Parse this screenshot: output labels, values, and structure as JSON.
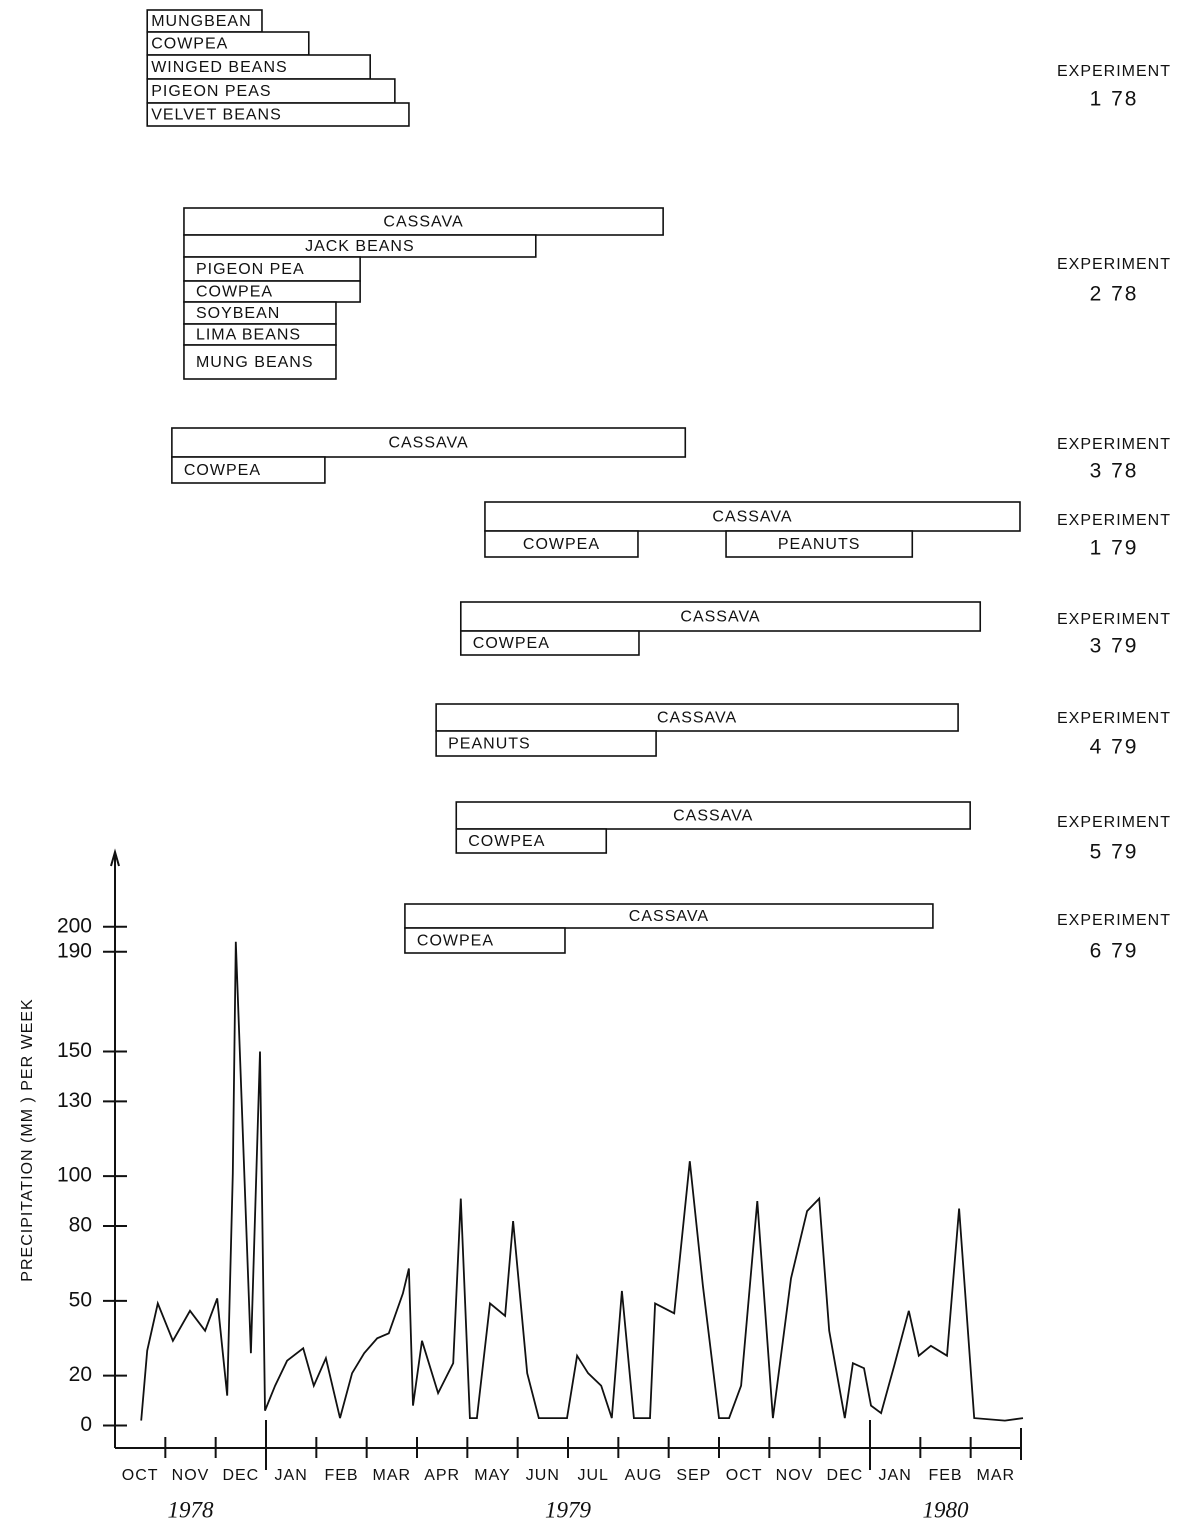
{
  "chart_data": [
    {
      "type": "gantt",
      "experiments": [
        {
          "label": "EXPERIMENT",
          "id": "1 78",
          "rows": [
            [
              {
                "label": "MUNGBEAN",
                "start": 0.64,
                "end": 2.92
              }
            ],
            [
              {
                "label": "COWPEA",
                "start": 0.64,
                "end": 3.85
              }
            ],
            [
              {
                "label": "WINGED BEANS",
                "start": 0.64,
                "end": 5.07
              }
            ],
            [
              {
                "label": "PIGEON PEAS",
                "start": 0.64,
                "end": 5.56
              }
            ],
            [
              {
                "label": "VELVET BEANS",
                "start": 0.64,
                "end": 5.84
              }
            ]
          ]
        },
        {
          "label": "EXPERIMENT",
          "id": "2 78",
          "rows": [
            [
              {
                "label": "CASSAVA",
                "start": 1.37,
                "end": 10.89
              }
            ],
            [
              {
                "label": "JACK BEANS",
                "start": 1.37,
                "end": 8.36
              }
            ],
            [
              {
                "label": "PIGEON PEA",
                "start": 1.37,
                "end": 4.87
              }
            ],
            [
              {
                "label": "COWPEA",
                "start": 1.37,
                "end": 4.87
              }
            ],
            [
              {
                "label": "SOYBEAN",
                "start": 1.37,
                "end": 4.39
              }
            ],
            [
              {
                "label": "LIMA BEANS",
                "start": 1.37,
                "end": 4.39
              }
            ],
            [
              {
                "label": "MUNG BEANS",
                "start": 1.37,
                "end": 4.39
              }
            ]
          ]
        },
        {
          "label": "EXPERIMENT",
          "id": "3 78",
          "rows": [
            [
              {
                "label": "CASSAVA",
                "start": 1.13,
                "end": 11.33
              }
            ],
            [
              {
                "label": "COWPEA",
                "start": 1.13,
                "end": 4.17
              }
            ]
          ]
        },
        {
          "label": "EXPERIMENT",
          "id": "1 79",
          "rows": [
            [
              {
                "label": "CASSAVA",
                "start": 7.35,
                "end": 17.98
              }
            ],
            [
              {
                "label": "COWPEA",
                "start": 7.35,
                "end": 10.39
              },
              {
                "label": "PEANUTS",
                "start": 12.14,
                "end": 15.84
              }
            ]
          ]
        },
        {
          "label": "EXPERIMENT",
          "id": "3 79",
          "rows": [
            [
              {
                "label": "CASSAVA",
                "start": 6.87,
                "end": 17.19
              }
            ],
            [
              {
                "label": "COWPEA",
                "start": 6.87,
                "end": 10.41
              }
            ]
          ]
        },
        {
          "label": "EXPERIMENT",
          "id": "4 79",
          "rows": [
            [
              {
                "label": "CASSAVA",
                "start": 6.38,
                "end": 16.75
              }
            ],
            [
              {
                "label": "PEANUTS",
                "start": 6.38,
                "end": 10.75
              }
            ]
          ]
        },
        {
          "label": "EXPERIMENT",
          "id": "5 79",
          "rows": [
            [
              {
                "label": "CASSAVA",
                "start": 6.78,
                "end": 16.99
              }
            ],
            [
              {
                "label": "COWPEA",
                "start": 6.78,
                "end": 9.76
              }
            ]
          ]
        },
        {
          "label": "EXPERIMENT",
          "id": "6 79",
          "rows": [
            [
              {
                "label": "CASSAVA",
                "start": 5.76,
                "end": 16.25
              }
            ],
            [
              {
                "label": "COWPEA",
                "start": 5.76,
                "end": 8.94
              }
            ]
          ]
        }
      ]
    },
    {
      "type": "line",
      "y_label": "PRECIPITATION (MM ) PER WEEK",
      "categories": [
        "OCT",
        "NOV",
        "DEC",
        "JAN",
        "FEB",
        "MAR",
        "APR",
        "MAY",
        "JUN",
        "JUL",
        "AUG",
        "SEP",
        "OCT",
        "NOV",
        "DEC",
        "JAN",
        "FEB",
        "MAR"
      ],
      "years": [
        "1978",
        "1979",
        "1980"
      ],
      "xlim": [
        0,
        18
      ],
      "ylim": [
        -9,
        230
      ],
      "yticks": [
        0,
        20,
        50,
        80,
        100,
        130,
        150,
        190,
        200
      ],
      "color": "#111111",
      "x": [
        0.52,
        0.64,
        0.85,
        1.15,
        1.49,
        1.79,
        2.03,
        2.23,
        2.34,
        2.4,
        2.7,
        2.88,
        2.98,
        3.18,
        3.42,
        3.74,
        3.95,
        4.19,
        4.47,
        4.71,
        4.95,
        5.21,
        5.44,
        5.72,
        5.84,
        5.92,
        6.1,
        6.42,
        6.72,
        6.87,
        7.05,
        7.19,
        7.45,
        7.75,
        7.91,
        8.19,
        8.42,
        8.98,
        9.18,
        9.4,
        9.66,
        9.87,
        10.07,
        10.31,
        10.63,
        10.73,
        11.11,
        11.42,
        11.68,
        12.0,
        12.2,
        12.44,
        12.76,
        13.07,
        13.43,
        13.75,
        13.99,
        14.19,
        14.5,
        14.66,
        14.88,
        15.02,
        15.22,
        15.48,
        15.77,
        15.97,
        16.21,
        16.53,
        16.77,
        17.07,
        17.68,
        18.04
      ],
      "values": [
        2,
        30,
        49,
        34,
        46,
        38,
        51,
        12,
        101,
        194,
        29,
        150,
        6,
        16,
        26,
        31,
        16,
        27,
        3,
        21,
        29,
        35,
        37,
        53,
        63,
        8,
        34,
        13,
        25,
        91,
        3,
        3,
        49,
        44,
        82,
        21,
        3,
        3,
        28,
        21,
        16,
        3,
        54,
        3,
        3,
        49,
        45,
        106,
        56,
        3,
        3,
        16,
        90,
        3,
        59,
        86,
        91,
        38,
        3,
        25,
        23,
        8,
        5,
        24,
        46,
        28,
        32,
        28,
        87,
        3,
        2,
        3
      ]
    }
  ]
}
